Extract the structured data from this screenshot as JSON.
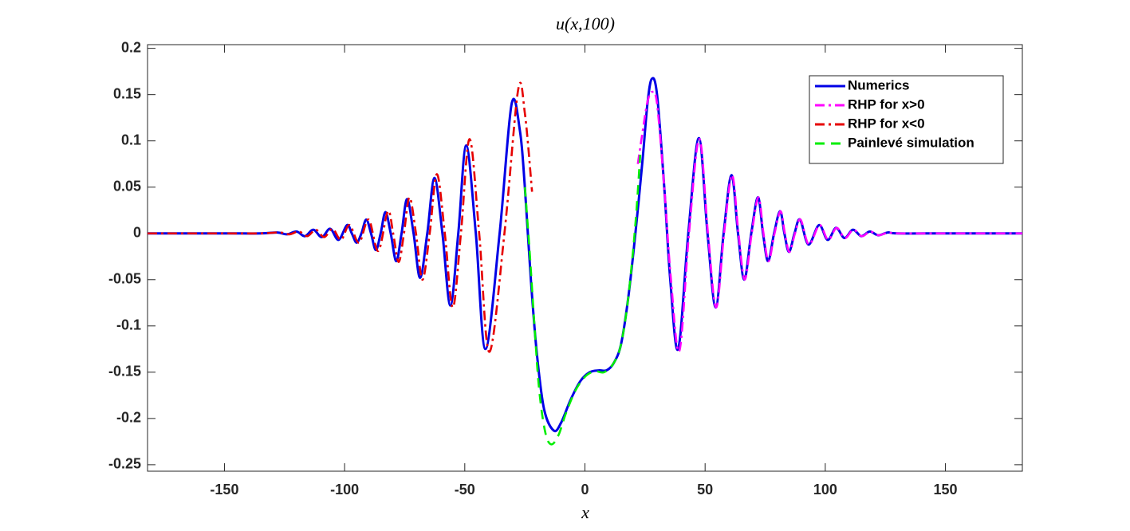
{
  "chart_data": {
    "type": "line",
    "title": "u(x,100)",
    "x_label": "x",
    "xlim": [
      -182,
      182
    ],
    "ylim": [
      -0.257,
      0.204
    ],
    "xticks": [
      -150,
      -100,
      -50,
      0,
      50,
      100,
      150
    ],
    "yticks": [
      -0.25,
      -0.2,
      -0.15,
      -0.1,
      -0.05,
      0,
      0.05,
      0.1,
      0.15,
      0.2
    ],
    "grid": false,
    "legend": "northeast",
    "series": [
      {
        "name": "Numerics",
        "color": "#0000e6",
        "style": "solid",
        "x": [
          -182,
          -150,
          -135,
          -128,
          -124,
          -120,
          -116.5,
          -113,
          -109.5,
          -106,
          -102.5,
          -99,
          -97,
          -95,
          -93,
          -91,
          -89,
          -87,
          -85,
          -83,
          -80.8,
          -78.5,
          -76.3,
          -74,
          -71.3,
          -68.6,
          -65.6,
          -62.6,
          -59.3,
          -56,
          -52.7,
          -49.4,
          -45.4,
          -41.4,
          -35.5,
          -30.5,
          -27,
          -25,
          -22.5,
          -20,
          -17,
          -13,
          -10,
          -6,
          -2,
          2,
          6,
          9,
          12,
          15,
          18,
          21,
          24,
          26,
          27.8,
          30,
          33,
          35.5,
          38.8,
          43,
          47.4,
          51,
          54.4,
          57.7,
          61,
          63.7,
          66.3,
          69.2,
          72,
          74.1,
          76.2,
          78.7,
          81.2,
          83,
          84.9,
          87.2,
          89.5,
          93,
          97.4,
          101,
          104.5,
          108,
          111.5,
          115,
          118.5,
          122,
          126,
          130,
          150,
          182
        ],
        "values": [
          0,
          0,
          0,
          0.001,
          -0.001,
          0.002,
          -0.003,
          0.004,
          -0.004,
          0.005,
          -0.007,
          0.009,
          0,
          -0.01,
          0,
          0.015,
          0,
          -0.018,
          0,
          0.023,
          0,
          -0.03,
          0,
          0.037,
          0,
          -0.048,
          0,
          0.06,
          0,
          -0.078,
          0,
          0.095,
          0,
          -0.125,
          0,
          0.14,
          0.11,
          0.05,
          -0.05,
          -0.13,
          -0.19,
          -0.213,
          -0.205,
          -0.18,
          -0.16,
          -0.15,
          -0.148,
          -0.148,
          -0.14,
          -0.12,
          -0.07,
          0,
          0.08,
          0.14,
          0.167,
          0.15,
          0.05,
          -0.05,
          -0.125,
          0,
          0.103,
          0,
          -0.08,
          0,
          0.063,
          0,
          -0.05,
          0,
          0.039,
          0,
          -0.03,
          0,
          0.024,
          0,
          -0.02,
          0,
          0.015,
          -0.012,
          0.009,
          -0.007,
          0.006,
          -0.005,
          0.004,
          -0.003,
          0.002,
          -0.002,
          0.001,
          0,
          0,
          0
        ]
      },
      {
        "name": "RHP for x>0",
        "color": "#ff00ff",
        "style": "dashdot",
        "x": [
          22,
          24,
          26,
          28,
          30,
          33,
          35.8,
          39.3,
          43.3,
          47.6,
          51.2,
          54.6,
          57.9,
          61.2,
          63.9,
          66.5,
          69.4,
          72.2,
          74.3,
          76.4,
          78.9,
          81.4,
          83.2,
          85.1,
          87.4,
          89.7,
          93.2,
          97.6,
          101.2,
          104.7,
          108.2,
          111.7,
          115.2,
          118.7,
          122.2,
          126.2,
          130,
          150,
          182
        ],
        "values": [
          0.075,
          0.11,
          0.142,
          0.153,
          0.14,
          0.05,
          -0.05,
          -0.127,
          0,
          0.102,
          0,
          -0.08,
          0,
          0.063,
          0,
          -0.05,
          0,
          0.039,
          0,
          -0.03,
          0,
          0.024,
          0,
          -0.02,
          0,
          0.015,
          -0.012,
          0.009,
          -0.007,
          0.006,
          -0.005,
          0.004,
          -0.003,
          0.002,
          -0.002,
          0.001,
          0,
          0,
          0
        ]
      },
      {
        "name": "RHP for x<0",
        "color": "#e60000",
        "style": "dashdot",
        "x": [
          -182,
          -150,
          -135,
          -127,
          -123,
          -119,
          -115.5,
          -112,
          -108.5,
          -105,
          -101.5,
          -98,
          -94,
          -90,
          -86,
          -82,
          -79.8,
          -77.5,
          -75.3,
          -73,
          -70.3,
          -67.6,
          -64.6,
          -61.6,
          -58.3,
          -55,
          -51.6,
          -48,
          -44,
          -39.8,
          -33.5,
          -27.8,
          -25,
          -22
        ],
        "values": [
          0,
          0,
          0,
          0.001,
          -0.001,
          0.002,
          -0.003,
          0.004,
          -0.004,
          0.005,
          -0.007,
          0.009,
          -0.01,
          0.015,
          -0.019,
          0.024,
          0,
          -0.031,
          0,
          0.039,
          0,
          -0.05,
          0,
          0.064,
          0,
          -0.08,
          0,
          0.102,
          0,
          -0.128,
          0,
          0.155,
          0.13,
          0.045
        ]
      },
      {
        "name": "Painlevé simulation",
        "color": "#00ee00",
        "style": "dashed",
        "x": [
          -25,
          -23,
          -21,
          -19,
          -16.5,
          -14,
          -11,
          -8,
          -4,
          0,
          4,
          8,
          12,
          15,
          18,
          21,
          23
        ],
        "values": [
          0.05,
          -0.02,
          -0.1,
          -0.17,
          -0.215,
          -0.228,
          -0.218,
          -0.195,
          -0.17,
          -0.155,
          -0.149,
          -0.15,
          -0.14,
          -0.12,
          -0.07,
          0.01,
          0.085
        ]
      }
    ]
  }
}
